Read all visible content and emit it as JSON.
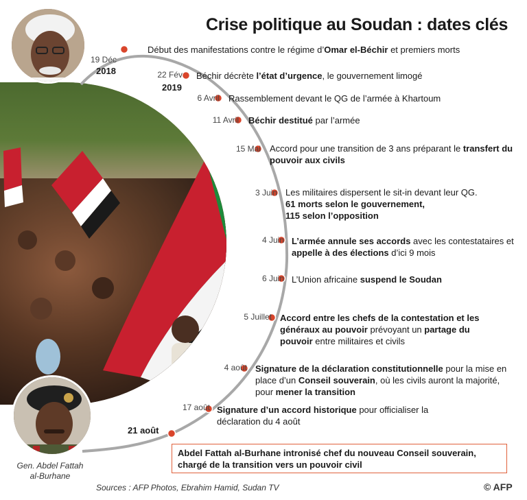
{
  "title": "Crise politique au Soudan : dates clés",
  "caption_bottom": "Gen. Abdel Fattah al-Burhane",
  "sources": "Sources :  AFP Photos, Ebrahim Hamid, Sudan TV",
  "credit": "© AFP",
  "colors": {
    "accent": "#e0603a",
    "timeline": "#9a9a9a",
    "dot": "#d9452b"
  },
  "timeline": [
    {
      "date": "19 Déc",
      "year": "2018",
      "parts": [
        [
          "Début des manifestations contre le régime d’",
          false
        ],
        [
          "Omar el-Béchir",
          true
        ],
        [
          " et premiers morts",
          false
        ]
      ]
    },
    {
      "date": "22 Fév",
      "year": "2019",
      "parts": [
        [
          "Béchir décrète ",
          false
        ],
        [
          "l’état d’urgence",
          true
        ],
        [
          ", le gouvernement limogé",
          false
        ]
      ]
    },
    {
      "date": "6 Avril",
      "parts": [
        [
          "Rassemblement devant le QG de l’armée à Khartoum",
          false
        ]
      ]
    },
    {
      "date": "11 Avril",
      "parts": [
        [
          "Béchir destitué",
          true
        ],
        [
          " par l’armée",
          false
        ]
      ]
    },
    {
      "date": "15 Mai",
      "parts": [
        [
          "Accord pour une transition de 3 ans préparant le ",
          false
        ],
        [
          "transfert du pouvoir aux civils",
          true
        ]
      ]
    },
    {
      "date": "3 Juin",
      "parts": [
        [
          "Les militaires dispersent le sit-in devant leur QG.",
          false
        ],
        [
          "61 morts selon le gouvernement,",
          true
        ],
        [
          "115 selon l’opposition",
          true
        ]
      ]
    },
    {
      "date": "4 Juin",
      "parts": [
        [
          "L’armée annule ses accords",
          true
        ],
        [
          " avec les contestataires et ",
          false
        ],
        [
          "appelle à des élections",
          true
        ],
        [
          " d’ici 9 mois",
          false
        ]
      ]
    },
    {
      "date": "6 Juin",
      "parts": [
        [
          "L’Union africaine ",
          false
        ],
        [
          "suspend le Soudan",
          true
        ]
      ]
    },
    {
      "date": "5 Juillet",
      "parts": [
        [
          "Accord entre les chefs de la contestation et les généraux au pouvoir",
          true
        ],
        [
          " prévoyant un ",
          false
        ],
        [
          "partage du pouvoir",
          true
        ],
        [
          " entre militaires et civils",
          false
        ]
      ]
    },
    {
      "date": "4 août",
      "parts": [
        [
          "Signature de la déclaration constitutionnelle",
          true
        ],
        [
          " pour la mise en place d’un ",
          false
        ],
        [
          "Conseil souverain",
          true
        ],
        [
          ", où les civils auront la majorité, pour ",
          false
        ],
        [
          "mener la transition",
          true
        ]
      ]
    },
    {
      "date": "17 août",
      "parts": [
        [
          "Signature d’un accord historique",
          true
        ],
        [
          " pour officialiser la déclaration du 4 août",
          false
        ]
      ]
    }
  ],
  "final": {
    "date": "21 août",
    "text": "Abdel Fattah al-Burhane intronisé chef du nouveau Conseil souverain, chargé de la transition vers un pouvoir civil"
  }
}
